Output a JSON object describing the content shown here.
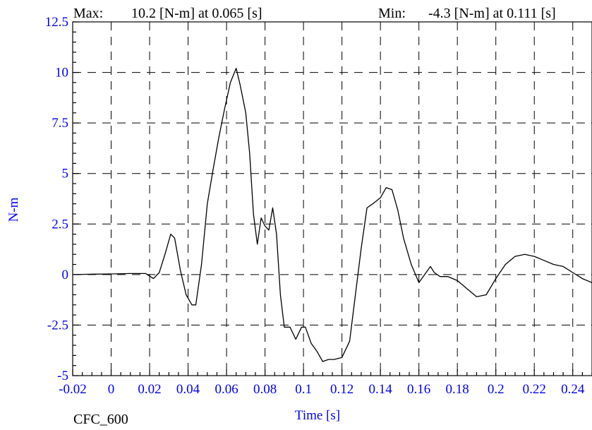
{
  "header": {
    "max_label": "Max:",
    "max_text": "10.2 [N-m] at 0.065 [s]",
    "min_label": "Min:",
    "min_text": "-4.3 [N-m] at 0.111 [s]"
  },
  "footer": {
    "filter_label": "CFC_600"
  },
  "colors": {
    "ticks": "#0000ee",
    "line": "#000000",
    "grid": "#000000"
  },
  "chart_data": {
    "type": "line",
    "xlabel": "Time [s]",
    "ylabel": "N-m",
    "xlim": [
      -0.02,
      0.25
    ],
    "ylim": [
      -5,
      12.5
    ],
    "grid": true,
    "x_ticks": [
      -0.02,
      0,
      0.02,
      0.04,
      0.06,
      0.08,
      0.1,
      0.12,
      0.14,
      0.16,
      0.18,
      0.2,
      0.22,
      0.24
    ],
    "x_tick_labels": [
      "-0.02",
      "0",
      "0.02",
      "0.04",
      "0.06",
      "0.08",
      "0.1",
      "0.12",
      "0.14",
      "0.16",
      "0.18",
      "0.2",
      "0.22",
      "0.24"
    ],
    "y_ticks": [
      -5,
      -2.5,
      0,
      2.5,
      5,
      7.5,
      10,
      12.5
    ],
    "y_tick_labels": [
      "-5",
      "-2.5",
      "0",
      "2.5",
      "5",
      "7.5",
      "10",
      "12.5"
    ],
    "series": [
      {
        "x": [
          -0.02,
          -0.01,
          0,
          0.01,
          0.015,
          0.018,
          0.022,
          0.025,
          0.028,
          0.031,
          0.033,
          0.036,
          0.039,
          0.042,
          0.044,
          0.047,
          0.05,
          0.053,
          0.056,
          0.059,
          0.062,
          0.065,
          0.067,
          0.07,
          0.072,
          0.074,
          0.076,
          0.078,
          0.08,
          0.082,
          0.084,
          0.086,
          0.088,
          0.09,
          0.093,
          0.096,
          0.099,
          0.101,
          0.104,
          0.107,
          0.11,
          0.113,
          0.116,
          0.12,
          0.124,
          0.127,
          0.13,
          0.133,
          0.136,
          0.14,
          0.143,
          0.146,
          0.149,
          0.152,
          0.156,
          0.16,
          0.163,
          0.166,
          0.168,
          0.171,
          0.175,
          0.18,
          0.185,
          0.19,
          0.195,
          0.2,
          0.205,
          0.21,
          0.215,
          0.22,
          0.225,
          0.23,
          0.235,
          0.24,
          0.245,
          0.25
        ],
        "y": [
          0,
          0.02,
          0.03,
          0.05,
          0.05,
          0.05,
          -0.2,
          0.1,
          1.0,
          2.0,
          1.8,
          0.2,
          -1.0,
          -1.5,
          -1.5,
          0.5,
          3.5,
          5.2,
          6.8,
          8.2,
          9.5,
          10.2,
          9.4,
          8.0,
          6.0,
          3.0,
          1.5,
          2.8,
          2.4,
          2.2,
          3.3,
          2.0,
          -1.0,
          -2.6,
          -2.6,
          -3.2,
          -2.6,
          -2.6,
          -3.4,
          -3.8,
          -4.3,
          -4.2,
          -4.2,
          -4.1,
          -3.3,
          -1.0,
          1.3,
          3.3,
          3.5,
          3.8,
          4.3,
          4.2,
          3.2,
          1.8,
          0.5,
          -0.4,
          0.0,
          0.4,
          0.1,
          -0.1,
          -0.1,
          -0.3,
          -0.7,
          -1.1,
          -1.0,
          -0.2,
          0.5,
          0.9,
          1.0,
          0.9,
          0.7,
          0.5,
          0.4,
          0.1,
          -0.2,
          -0.4
        ]
      }
    ]
  }
}
